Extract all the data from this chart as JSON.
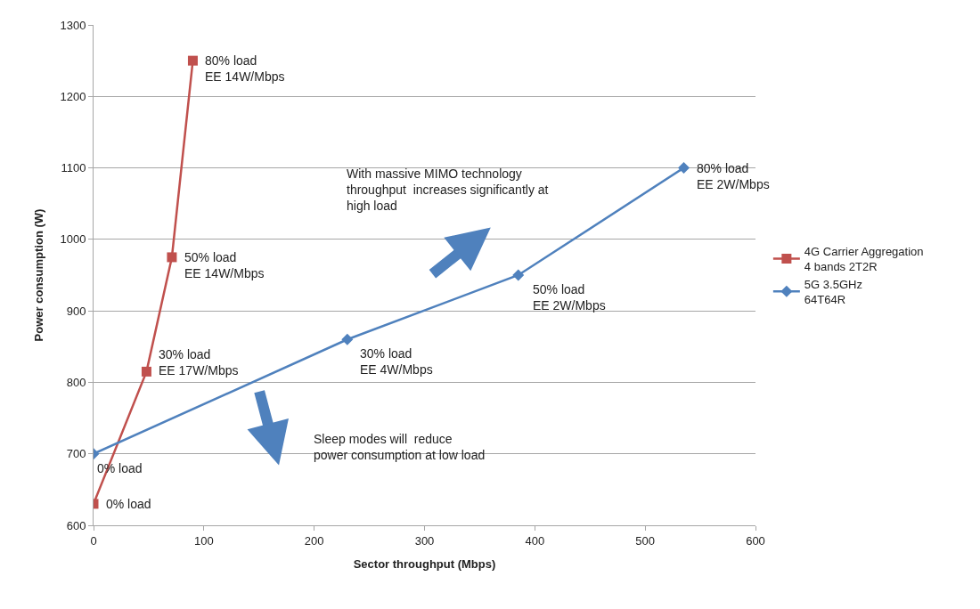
{
  "chart_data": {
    "type": "line",
    "xlabel": "Sector throughput (Mbps)",
    "ylabel": "Power consumption (W)",
    "series": [
      {
        "name": "4G Carrier Aggregation\n4 bands 2T2R",
        "color": "#c0504d",
        "marker": "square",
        "x": [
          0,
          48,
          71,
          90
        ],
        "values": [
          630,
          815,
          975,
          1250
        ]
      },
      {
        "name": "5G 3.5GHz\n64T64R",
        "color": "#4f81bd",
        "marker": "diamond",
        "x": [
          0,
          230,
          385,
          535
        ],
        "values": [
          700,
          860,
          950,
          1100
        ]
      }
    ],
    "xlim": [
      0,
      600
    ],
    "xticks": [
      0,
      100,
      200,
      300,
      400,
      500,
      600
    ],
    "ylim": [
      600,
      1300
    ],
    "yticks": [
      600,
      700,
      800,
      900,
      1000,
      1100,
      1200,
      1300
    ],
    "grid": "y",
    "legend": "right",
    "annotations": [
      {
        "text": "0% load",
        "x": 0,
        "y": 630
      },
      {
        "text": "30% load\nEE 17W/Mbps",
        "x": 48,
        "y": 815
      },
      {
        "text": "50% load\nEE 14W/Mbps",
        "x": 71,
        "y": 975
      },
      {
        "text": "80% load\nEE 14W/Mbps",
        "x": 90,
        "y": 1250
      },
      {
        "text": "0% load",
        "x": 0,
        "y": 700
      },
      {
        "text": "30% load\nEE 4W/Mbps",
        "x": 230,
        "y": 860
      },
      {
        "text": "50% load\nEE 2W/Mbps",
        "x": 385,
        "y": 950
      },
      {
        "text": "80% load\nEE 2W/Mbps",
        "x": 535,
        "y": 1100
      },
      "With massive MIMO technology\nthroughput  increases significantly at\nhigh load",
      "Sleep modes will  reduce\npower consumption at low load"
    ]
  }
}
